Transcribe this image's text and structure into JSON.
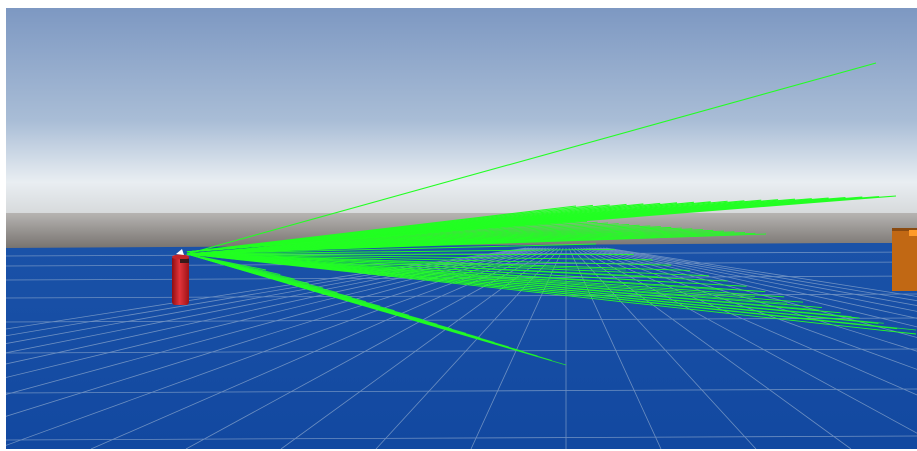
{
  "scene": {
    "sky_top_color": "#7d98c2",
    "sky_horizon_color": "#e9eef2",
    "horizon_haze_color": "#6f6a66",
    "ground_color": "#1248a0",
    "grid_line_color": "#8aa6cc",
    "ray_color": "#22ff22",
    "sensor_object": {
      "name": "red-cylinder-agent",
      "color": "#d01c22",
      "marker_color": "#ffffff"
    },
    "obstacle_object": {
      "name": "orange-box",
      "color": "#c16814",
      "edge_color": "#ff9b2a"
    }
  }
}
